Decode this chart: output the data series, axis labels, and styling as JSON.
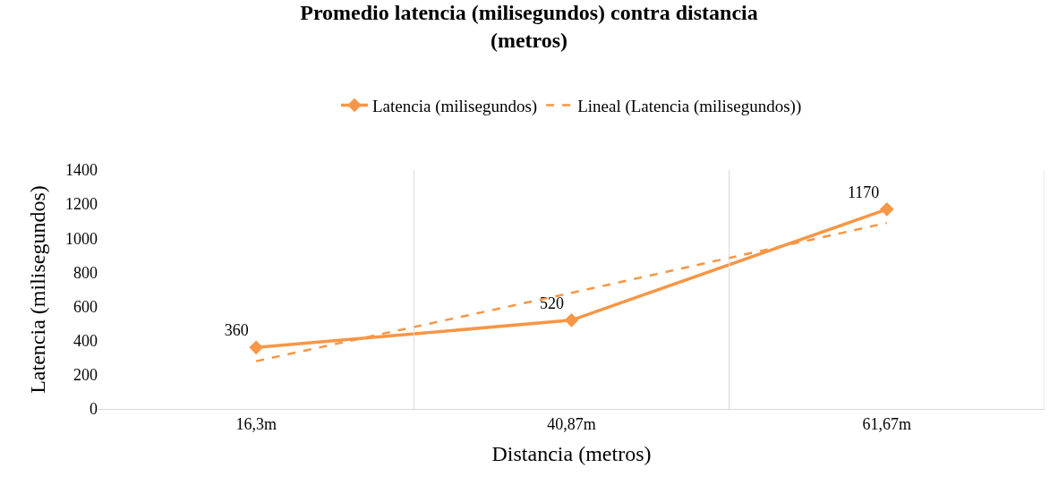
{
  "chart_data": {
    "type": "line",
    "title": "Promedio latencia (milisegundos) contra distancia (metros)",
    "xlabel": "Distancia (metros)",
    "ylabel": "Latencia (milisegundos)",
    "categories": [
      "16,3m",
      "40,87m",
      "61,67m"
    ],
    "series": [
      {
        "name": "Latencia (milisegundos)",
        "color": "#f79646",
        "values": [
          360,
          520,
          1170
        ],
        "value_labels": [
          "360",
          "520",
          "1170"
        ],
        "marker": "diamond",
        "line_style": "solid"
      },
      {
        "name": "Lineal (Latencia (milisegundos))",
        "color": "#f79646",
        "values": [
          280,
          680,
          1090
        ],
        "marker": "none",
        "line_style": "dashed"
      }
    ],
    "ylim": [
      0,
      1400
    ],
    "yticks": [
      0,
      200,
      400,
      600,
      800,
      1000,
      1200,
      1400
    ],
    "grid": "x",
    "legend": "top"
  }
}
